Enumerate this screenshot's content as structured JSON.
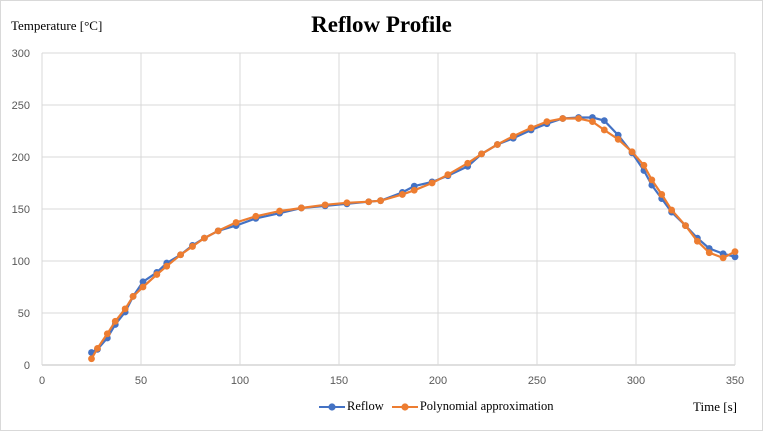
{
  "chart_data": {
    "type": "line",
    "title": "Reflow Profile",
    "xlabel": "Time [s]",
    "ylabel": "Temperature [°C]",
    "xlim": [
      0,
      350
    ],
    "ylim": [
      0,
      300
    ],
    "x_ticks": [
      0,
      50,
      100,
      150,
      200,
      250,
      300,
      350
    ],
    "y_ticks": [
      0,
      50,
      100,
      150,
      200,
      250,
      300
    ],
    "x_tick_labels": [
      "0",
      "50",
      "100",
      "150",
      "200",
      "250",
      "300",
      "350"
    ],
    "y_tick_labels": [
      "0",
      "50",
      "100",
      "150",
      "200",
      "250",
      "300"
    ],
    "grid": true,
    "legend_position": "bottom",
    "series": [
      {
        "name": "Reflow",
        "color": "#4472C4",
        "points": [
          [
            25,
            12
          ],
          [
            28,
            15
          ],
          [
            33,
            26
          ],
          [
            37,
            39
          ],
          [
            42,
            51
          ],
          [
            46,
            66
          ],
          [
            51,
            80
          ],
          [
            58,
            89
          ],
          [
            63,
            98
          ],
          [
            70,
            106
          ],
          [
            76,
            115
          ],
          [
            82,
            122
          ],
          [
            89,
            129
          ],
          [
            98,
            134
          ],
          [
            108,
            141
          ],
          [
            120,
            146
          ],
          [
            131,
            151
          ],
          [
            143,
            153
          ],
          [
            154,
            155
          ],
          [
            165,
            157
          ],
          [
            171,
            158
          ],
          [
            182,
            166
          ],
          [
            188,
            172
          ],
          [
            197,
            176
          ],
          [
            205,
            182
          ],
          [
            215,
            191
          ],
          [
            222,
            203
          ],
          [
            230,
            212
          ],
          [
            238,
            218
          ],
          [
            247,
            226
          ],
          [
            255,
            232
          ],
          [
            263,
            237
          ],
          [
            271,
            238
          ],
          [
            278,
            238
          ],
          [
            284,
            235
          ],
          [
            291,
            221
          ],
          [
            298,
            204
          ],
          [
            304,
            187
          ],
          [
            308,
            173
          ],
          [
            313,
            160
          ],
          [
            318,
            147
          ],
          [
            325,
            134
          ],
          [
            331,
            122
          ],
          [
            337,
            112
          ],
          [
            344,
            107
          ],
          [
            350,
            104
          ]
        ]
      },
      {
        "name": "Polynomial approximation",
        "color": "#ED7D31",
        "points": [
          [
            25,
            6
          ],
          [
            28,
            16
          ],
          [
            33,
            30
          ],
          [
            37,
            42
          ],
          [
            42,
            54
          ],
          [
            46,
            66
          ],
          [
            51,
            75
          ],
          [
            58,
            87
          ],
          [
            63,
            95
          ],
          [
            70,
            106
          ],
          [
            76,
            114
          ],
          [
            82,
            122
          ],
          [
            89,
            129
          ],
          [
            98,
            137
          ],
          [
            108,
            143
          ],
          [
            120,
            148
          ],
          [
            131,
            151
          ],
          [
            143,
            154
          ],
          [
            154,
            156
          ],
          [
            165,
            157
          ],
          [
            171,
            158
          ],
          [
            182,
            164
          ],
          [
            188,
            168
          ],
          [
            197,
            175
          ],
          [
            205,
            183
          ],
          [
            215,
            194
          ],
          [
            222,
            203
          ],
          [
            230,
            212
          ],
          [
            238,
            220
          ],
          [
            247,
            228
          ],
          [
            255,
            234
          ],
          [
            263,
            237
          ],
          [
            271,
            237
          ],
          [
            278,
            234
          ],
          [
            284,
            226
          ],
          [
            291,
            217
          ],
          [
            298,
            205
          ],
          [
            304,
            192
          ],
          [
            308,
            178
          ],
          [
            313,
            164
          ],
          [
            318,
            149
          ],
          [
            325,
            134
          ],
          [
            331,
            119
          ],
          [
            337,
            108
          ],
          [
            344,
            103
          ],
          [
            350,
            109
          ]
        ]
      }
    ]
  }
}
